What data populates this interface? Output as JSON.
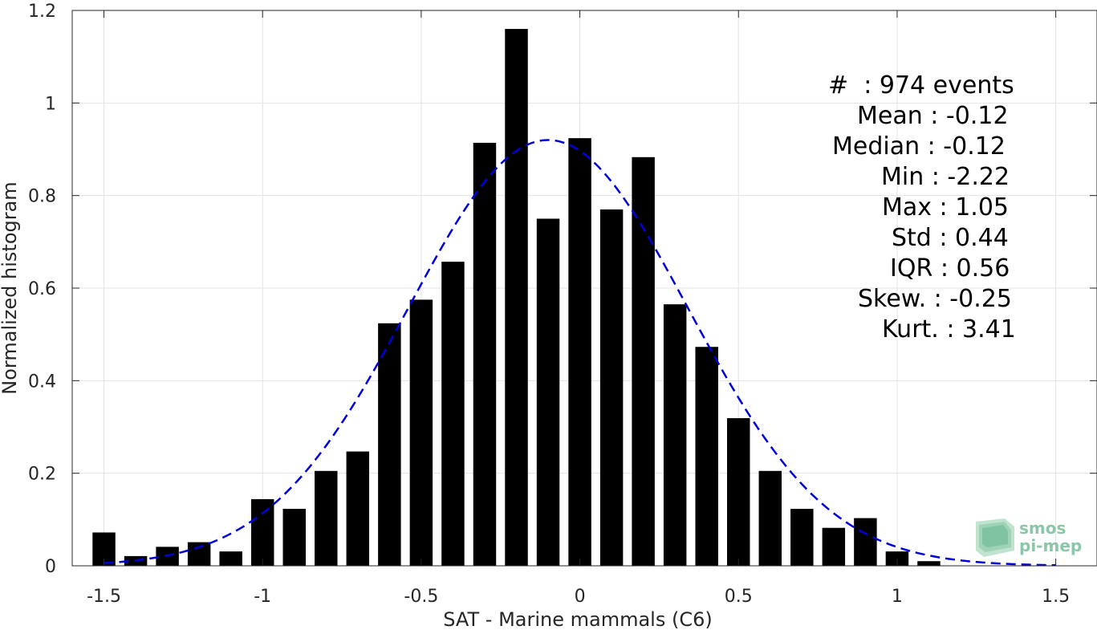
{
  "chart_data": {
    "type": "bar",
    "xlabel": "SAT - Marine mammals (C6)",
    "ylabel": "Normalized histogram",
    "xlim": [
      -1.6,
      1.63
    ],
    "ylim": [
      0,
      1.2
    ],
    "xticks": [
      -1.5,
      -1,
      -0.5,
      0,
      0.5,
      1,
      1.5
    ],
    "xtick_labels": [
      "-1.5",
      "-1",
      "-0.5",
      "0",
      "0.5",
      "1",
      "1.5"
    ],
    "yticks": [
      0,
      0.2,
      0.4,
      0.6,
      0.8,
      1,
      1.2
    ],
    "ytick_labels": [
      "0",
      "0.2",
      "0.4",
      "0.6",
      "0.8",
      "1",
      "1.2"
    ],
    "grid": true,
    "bar_width": 0.072,
    "x": [
      -1.5,
      -1.4,
      -1.3,
      -1.2,
      -1.1,
      -1.0,
      -0.9,
      -0.8,
      -0.7,
      -0.6,
      -0.5,
      -0.4,
      -0.3,
      -0.2,
      -0.1,
      0.0,
      0.1,
      0.2,
      0.3,
      0.4,
      0.5,
      0.6,
      0.7,
      0.8,
      0.9,
      1.0,
      1.1
    ],
    "values": [
      0.072,
      0.021,
      0.041,
      0.051,
      0.031,
      0.144,
      0.123,
      0.205,
      0.247,
      0.524,
      0.575,
      0.657,
      0.914,
      1.16,
      0.75,
      0.924,
      0.77,
      0.883,
      0.565,
      0.473,
      0.319,
      0.205,
      0.123,
      0.082,
      0.103,
      0.031,
      0.01
    ],
    "fit_curve": {
      "type": "gaussian",
      "mean": -0.1,
      "std": 0.44,
      "peak": 0.92,
      "x_range": [
        -1.5,
        1.5
      ]
    },
    "bar_color": "#000000",
    "curve_color": "#0000dd"
  },
  "stats": [
    "#  : 974 events",
    "Mean : -0.12",
    "Median : -0.12",
    "Min : -2.22",
    "Max : 1.05",
    "Std : 0.44",
    "IQR : 0.56",
    "Skew. : -0.25",
    "Kurt. : 3.41"
  ],
  "logo": {
    "line1": "smos",
    "line2": "pi-mep"
  }
}
